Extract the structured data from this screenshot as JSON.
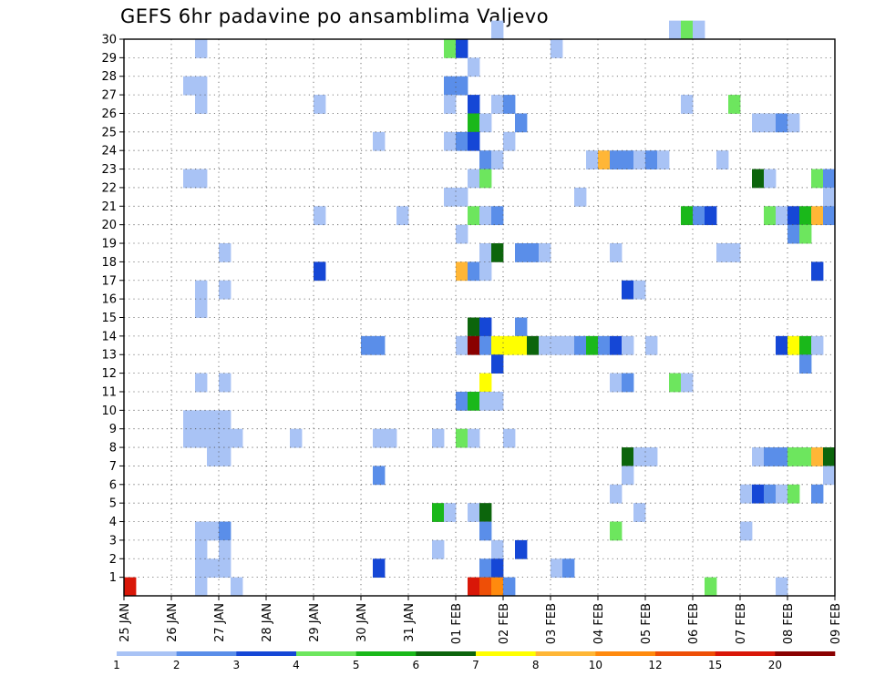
{
  "chart_data": {
    "type": "heatmap",
    "title": "GEFS 6hr padavine po ansamblima Valjevo",
    "xlabel": "",
    "ylabel": "",
    "x_ticks": [
      "25 JAN",
      "26 JAN",
      "27 JAN",
      "28 JAN",
      "29 JAN",
      "30 JAN",
      "31 JAN",
      "01 FEB",
      "02 FEB",
      "03 FEB",
      "04 FEB",
      "05 FEB",
      "06 FEB",
      "07 FEB",
      "08 FEB",
      "09 FEB"
    ],
    "y_ticks": [
      1,
      2,
      3,
      4,
      5,
      6,
      7,
      8,
      9,
      10,
      11,
      12,
      13,
      14,
      15,
      16,
      17,
      18,
      19,
      20,
      21,
      22,
      23,
      24,
      25,
      26,
      27,
      28,
      29,
      30
    ],
    "xlim": [
      "25 JAN 00Z",
      "09 FEB 00Z"
    ],
    "ylim": [
      0,
      30
    ],
    "time_step_hours": 6,
    "grid": true,
    "colorbar": {
      "position": "bottom",
      "labels": [
        "1",
        "2",
        "3",
        "4",
        "5",
        "6",
        "7",
        "8",
        "10",
        "12",
        "15",
        "20"
      ],
      "colors": [
        "#a9c3f5",
        "#5a8ee9",
        "#1547d6",
        "#6de65e",
        "#1ab81a",
        "#0c650c",
        "#ffff00",
        "#ffb636",
        "#ff8a0e",
        "#ee4f07",
        "#d91708",
        "#8a0000"
      ]
    },
    "cells": [
      {
        "x": "25 JAN 00Z",
        "m": 0,
        "v": 15
      },
      {
        "x": "26 JAN 06Z",
        "m": 27,
        "v": 1
      },
      {
        "x": "26 JAN 06Z",
        "m": 22,
        "v": 1
      },
      {
        "x": "26 JAN 06Z",
        "m": 9,
        "v": 1
      },
      {
        "x": "26 JAN 06Z",
        "m": 8,
        "v": 1
      },
      {
        "x": "26 JAN 12Z",
        "m": 29,
        "v": 1
      },
      {
        "x": "26 JAN 12Z",
        "m": 27,
        "v": 1
      },
      {
        "x": "26 JAN 12Z",
        "m": 26,
        "v": 1
      },
      {
        "x": "26 JAN 12Z",
        "m": 22,
        "v": 1
      },
      {
        "x": "26 JAN 12Z",
        "m": 16,
        "v": 1
      },
      {
        "x": "26 JAN 12Z",
        "m": 15,
        "v": 1
      },
      {
        "x": "26 JAN 12Z",
        "m": 11,
        "v": 1
      },
      {
        "x": "26 JAN 12Z",
        "m": 9,
        "v": 1
      },
      {
        "x": "26 JAN 12Z",
        "m": 8,
        "v": 1
      },
      {
        "x": "26 JAN 12Z",
        "m": 3,
        "v": 1
      },
      {
        "x": "26 JAN 12Z",
        "m": 2,
        "v": 1
      },
      {
        "x": "26 JAN 12Z",
        "m": 1,
        "v": 1
      },
      {
        "x": "26 JAN 12Z",
        "m": 0,
        "v": 1
      },
      {
        "x": "26 JAN 18Z",
        "m": 9,
        "v": 1
      },
      {
        "x": "26 JAN 18Z",
        "m": 8,
        "v": 1
      },
      {
        "x": "26 JAN 18Z",
        "m": 7,
        "v": 1
      },
      {
        "x": "26 JAN 18Z",
        "m": 3,
        "v": 1
      },
      {
        "x": "26 JAN 18Z",
        "m": 1,
        "v": 1
      },
      {
        "x": "27 JAN 00Z",
        "m": 18,
        "v": 1
      },
      {
        "x": "27 JAN 00Z",
        "m": 16,
        "v": 1
      },
      {
        "x": "27 JAN 00Z",
        "m": 11,
        "v": 1
      },
      {
        "x": "27 JAN 00Z",
        "m": 9,
        "v": 1
      },
      {
        "x": "27 JAN 00Z",
        "m": 8,
        "v": 1
      },
      {
        "x": "27 JAN 00Z",
        "m": 7,
        "v": 1
      },
      {
        "x": "27 JAN 00Z",
        "m": 3,
        "v": 2
      },
      {
        "x": "27 JAN 00Z",
        "m": 2,
        "v": 1
      },
      {
        "x": "27 JAN 00Z",
        "m": 1,
        "v": 1
      },
      {
        "x": "27 JAN 06Z",
        "m": 8,
        "v": 1
      },
      {
        "x": "27 JAN 06Z",
        "m": 0,
        "v": 1
      },
      {
        "x": "28 JAN 12Z",
        "m": 8,
        "v": 1
      },
      {
        "x": "29 JAN 00Z",
        "m": 26,
        "v": 1
      },
      {
        "x": "29 JAN 00Z",
        "m": 20,
        "v": 1
      },
      {
        "x": "29 JAN 00Z",
        "m": 17,
        "v": 3
      },
      {
        "x": "30 JAN 00Z",
        "m": 13,
        "v": 2
      },
      {
        "x": "30 JAN 06Z",
        "m": 24,
        "v": 1
      },
      {
        "x": "30 JAN 06Z",
        "m": 13,
        "v": 2
      },
      {
        "x": "30 JAN 06Z",
        "m": 8,
        "v": 1
      },
      {
        "x": "30 JAN 06Z",
        "m": 6,
        "v": 2
      },
      {
        "x": "30 JAN 06Z",
        "m": 1,
        "v": 3
      },
      {
        "x": "30 JAN 12Z",
        "m": 8,
        "v": 1
      },
      {
        "x": "30 JAN 18Z",
        "m": 20,
        "v": 1
      },
      {
        "x": "31 JAN 12Z",
        "m": 8,
        "v": 1
      },
      {
        "x": "31 JAN 12Z",
        "m": 4,
        "v": 5
      },
      {
        "x": "31 JAN 12Z",
        "m": 2,
        "v": 1
      },
      {
        "x": "31 JAN 18Z",
        "m": 29,
        "v": 4
      },
      {
        "x": "31 JAN 18Z",
        "m": 27,
        "v": 2
      },
      {
        "x": "31 JAN 18Z",
        "m": 26,
        "v": 1
      },
      {
        "x": "31 JAN 18Z",
        "m": 24,
        "v": 1
      },
      {
        "x": "31 JAN 18Z",
        "m": 21,
        "v": 1
      },
      {
        "x": "31 JAN 18Z",
        "m": 4,
        "v": 1
      },
      {
        "x": "01 FEB 00Z",
        "m": 29,
        "v": 3
      },
      {
        "x": "01 FEB 00Z",
        "m": 27,
        "v": 2
      },
      {
        "x": "01 FEB 00Z",
        "m": 24,
        "v": 2
      },
      {
        "x": "01 FEB 00Z",
        "m": 21,
        "v": 1
      },
      {
        "x": "01 FEB 00Z",
        "m": 19,
        "v": 1
      },
      {
        "x": "01 FEB 00Z",
        "m": 17,
        "v": 8
      },
      {
        "x": "01 FEB 00Z",
        "m": 13,
        "v": 1
      },
      {
        "x": "01 FEB 00Z",
        "m": 10,
        "v": 2
      },
      {
        "x": "01 FEB 00Z",
        "m": 8,
        "v": 4
      },
      {
        "x": "01 FEB 06Z",
        "m": 28,
        "v": 1
      },
      {
        "x": "01 FEB 06Z",
        "m": 26,
        "v": 3
      },
      {
        "x": "01 FEB 06Z",
        "m": 25,
        "v": 5
      },
      {
        "x": "01 FEB 06Z",
        "m": 24,
        "v": 3
      },
      {
        "x": "01 FEB 06Z",
        "m": 22,
        "v": 1
      },
      {
        "x": "01 FEB 06Z",
        "m": 20,
        "v": 4
      },
      {
        "x": "01 FEB 06Z",
        "m": 17,
        "v": 2
      },
      {
        "x": "01 FEB 06Z",
        "m": 14,
        "v": 6
      },
      {
        "x": "01 FEB 06Z",
        "m": 13,
        "v": 20
      },
      {
        "x": "01 FEB 06Z",
        "m": 10,
        "v": 5
      },
      {
        "x": "01 FEB 06Z",
        "m": 8,
        "v": 1
      },
      {
        "x": "01 FEB 06Z",
        "m": 4,
        "v": 1
      },
      {
        "x": "01 FEB 06Z",
        "m": 0,
        "v": 15
      },
      {
        "x": "01 FEB 12Z",
        "m": 25,
        "v": 1
      },
      {
        "x": "01 FEB 12Z",
        "m": 23,
        "v": 2
      },
      {
        "x": "01 FEB 12Z",
        "m": 22,
        "v": 4
      },
      {
        "x": "01 FEB 12Z",
        "m": 20,
        "v": 1
      },
      {
        "x": "01 FEB 12Z",
        "m": 18,
        "v": 1
      },
      {
        "x": "01 FEB 12Z",
        "m": 17,
        "v": 1
      },
      {
        "x": "01 FEB 12Z",
        "m": 14,
        "v": 3
      },
      {
        "x": "01 FEB 12Z",
        "m": 13,
        "v": 2
      },
      {
        "x": "01 FEB 12Z",
        "m": 11,
        "v": 7
      },
      {
        "x": "01 FEB 12Z",
        "m": 10,
        "v": 1
      },
      {
        "x": "01 FEB 12Z",
        "m": 4,
        "v": 6
      },
      {
        "x": "01 FEB 12Z",
        "m": 3,
        "v": 2
      },
      {
        "x": "01 FEB 12Z",
        "m": 1,
        "v": 2
      },
      {
        "x": "01 FEB 12Z",
        "m": 0,
        "v": 12
      },
      {
        "x": "01 FEB 18Z",
        "m": 30,
        "v": 1
      },
      {
        "x": "01 FEB 18Z",
        "m": 26,
        "v": 1
      },
      {
        "x": "01 FEB 18Z",
        "m": 23,
        "v": 1
      },
      {
        "x": "01 FEB 18Z",
        "m": 20,
        "v": 2
      },
      {
        "x": "01 FEB 18Z",
        "m": 18,
        "v": 6
      },
      {
        "x": "01 FEB 18Z",
        "m": 13,
        "v": 7
      },
      {
        "x": "01 FEB 18Z",
        "m": 12,
        "v": 3
      },
      {
        "x": "01 FEB 18Z",
        "m": 10,
        "v": 1
      },
      {
        "x": "01 FEB 18Z",
        "m": 2,
        "v": 1
      },
      {
        "x": "01 FEB 18Z",
        "m": 1,
        "v": 3
      },
      {
        "x": "01 FEB 18Z",
        "m": 0,
        "v": 10
      },
      {
        "x": "02 FEB 00Z",
        "m": 26,
        "v": 2
      },
      {
        "x": "02 FEB 00Z",
        "m": 24,
        "v": 1
      },
      {
        "x": "02 FEB 00Z",
        "m": 13,
        "v": 7
      },
      {
        "x": "02 FEB 00Z",
        "m": 8,
        "v": 1
      },
      {
        "x": "02 FEB 00Z",
        "m": 0,
        "v": 2
      },
      {
        "x": "02 FEB 06Z",
        "m": 25,
        "v": 2
      },
      {
        "x": "02 FEB 06Z",
        "m": 18,
        "v": 2
      },
      {
        "x": "02 FEB 06Z",
        "m": 14,
        "v": 2
      },
      {
        "x": "02 FEB 06Z",
        "m": 13,
        "v": 7
      },
      {
        "x": "02 FEB 06Z",
        "m": 2,
        "v": 3
      },
      {
        "x": "02 FEB 12Z",
        "m": 18,
        "v": 2
      },
      {
        "x": "02 FEB 12Z",
        "m": 13,
        "v": 6
      },
      {
        "x": "02 FEB 18Z",
        "m": 18,
        "v": 1
      },
      {
        "x": "02 FEB 18Z",
        "m": 13,
        "v": 1
      },
      {
        "x": "03 FEB 00Z",
        "m": 29,
        "v": 1
      },
      {
        "x": "03 FEB 00Z",
        "m": 13,
        "v": 1
      },
      {
        "x": "03 FEB 00Z",
        "m": 1,
        "v": 1
      },
      {
        "x": "03 FEB 06Z",
        "m": 13,
        "v": 1
      },
      {
        "x": "03 FEB 06Z",
        "m": 1,
        "v": 2
      },
      {
        "x": "03 FEB 12Z",
        "m": 21,
        "v": 1
      },
      {
        "x": "03 FEB 12Z",
        "m": 13,
        "v": 2
      },
      {
        "x": "03 FEB 18Z",
        "m": 23,
        "v": 1
      },
      {
        "x": "03 FEB 18Z",
        "m": 13,
        "v": 5
      },
      {
        "x": "04 FEB 00Z",
        "m": 23,
        "v": 8
      },
      {
        "x": "04 FEB 00Z",
        "m": 13,
        "v": 2
      },
      {
        "x": "04 FEB 06Z",
        "m": 23,
        "v": 2
      },
      {
        "x": "04 FEB 06Z",
        "m": 18,
        "v": 1
      },
      {
        "x": "04 FEB 06Z",
        "m": 13,
        "v": 3
      },
      {
        "x": "04 FEB 06Z",
        "m": 11,
        "v": 1
      },
      {
        "x": "04 FEB 06Z",
        "m": 5,
        "v": 1
      },
      {
        "x": "04 FEB 06Z",
        "m": 3,
        "v": 4
      },
      {
        "x": "04 FEB 12Z",
        "m": 23,
        "v": 2
      },
      {
        "x": "04 FEB 12Z",
        "m": 16,
        "v": 3
      },
      {
        "x": "04 FEB 12Z",
        "m": 13,
        "v": 1
      },
      {
        "x": "04 FEB 12Z",
        "m": 11,
        "v": 2
      },
      {
        "x": "04 FEB 12Z",
        "m": 7,
        "v": 6
      },
      {
        "x": "04 FEB 12Z",
        "m": 6,
        "v": 1
      },
      {
        "x": "04 FEB 18Z",
        "m": 23,
        "v": 1
      },
      {
        "x": "04 FEB 18Z",
        "m": 16,
        "v": 1
      },
      {
        "x": "04 FEB 18Z",
        "m": 7,
        "v": 1
      },
      {
        "x": "04 FEB 18Z",
        "m": 4,
        "v": 1
      },
      {
        "x": "05 FEB 00Z",
        "m": 23,
        "v": 2
      },
      {
        "x": "05 FEB 00Z",
        "m": 13,
        "v": 1
      },
      {
        "x": "05 FEB 00Z",
        "m": 7,
        "v": 1
      },
      {
        "x": "05 FEB 06Z",
        "m": 23,
        "v": 1
      },
      {
        "x": "05 FEB 12Z",
        "m": 30,
        "v": 1
      },
      {
        "x": "05 FEB 12Z",
        "m": 11,
        "v": 4
      },
      {
        "x": "05 FEB 18Z",
        "m": 30,
        "v": 4
      },
      {
        "x": "05 FEB 18Z",
        "m": 26,
        "v": 1
      },
      {
        "x": "05 FEB 18Z",
        "m": 20,
        "v": 5
      },
      {
        "x": "05 FEB 18Z",
        "m": 11,
        "v": 1
      },
      {
        "x": "06 FEB 00Z",
        "m": 30,
        "v": 1
      },
      {
        "x": "06 FEB 00Z",
        "m": 20,
        "v": 2
      },
      {
        "x": "06 FEB 06Z",
        "m": 20,
        "v": 3
      },
      {
        "x": "06 FEB 06Z",
        "m": 0,
        "v": 4
      },
      {
        "x": "06 FEB 12Z",
        "m": 23,
        "v": 1
      },
      {
        "x": "06 FEB 12Z",
        "m": 18,
        "v": 1
      },
      {
        "x": "06 FEB 18Z",
        "m": 26,
        "v": 4
      },
      {
        "x": "06 FEB 18Z",
        "m": 18,
        "v": 1
      },
      {
        "x": "07 FEB 00Z",
        "m": 5,
        "v": 1
      },
      {
        "x": "07 FEB 00Z",
        "m": 3,
        "v": 1
      },
      {
        "x": "07 FEB 06Z",
        "m": 25,
        "v": 1
      },
      {
        "x": "07 FEB 06Z",
        "m": 22,
        "v": 6
      },
      {
        "x": "07 FEB 06Z",
        "m": 7,
        "v": 1
      },
      {
        "x": "07 FEB 06Z",
        "m": 5,
        "v": 3
      },
      {
        "x": "07 FEB 12Z",
        "m": 25,
        "v": 1
      },
      {
        "x": "07 FEB 12Z",
        "m": 22,
        "v": 1
      },
      {
        "x": "07 FEB 12Z",
        "m": 20,
        "v": 4
      },
      {
        "x": "07 FEB 12Z",
        "m": 7,
        "v": 2
      },
      {
        "x": "07 FEB 12Z",
        "m": 5,
        "v": 2
      },
      {
        "x": "07 FEB 18Z",
        "m": 25,
        "v": 2
      },
      {
        "x": "07 FEB 18Z",
        "m": 20,
        "v": 1
      },
      {
        "x": "07 FEB 18Z",
        "m": 13,
        "v": 3
      },
      {
        "x": "07 FEB 18Z",
        "m": 7,
        "v": 2
      },
      {
        "x": "07 FEB 18Z",
        "m": 5,
        "v": 1
      },
      {
        "x": "07 FEB 18Z",
        "m": 0,
        "v": 1
      },
      {
        "x": "08 FEB 00Z",
        "m": 25,
        "v": 1
      },
      {
        "x": "08 FEB 00Z",
        "m": 20,
        "v": 3
      },
      {
        "x": "08 FEB 00Z",
        "m": 19,
        "v": 2
      },
      {
        "x": "08 FEB 00Z",
        "m": 13,
        "v": 7
      },
      {
        "x": "08 FEB 00Z",
        "m": 7,
        "v": 4
      },
      {
        "x": "08 FEB 00Z",
        "m": 5,
        "v": 4
      },
      {
        "x": "08 FEB 06Z",
        "m": 20,
        "v": 5
      },
      {
        "x": "08 FEB 06Z",
        "m": 19,
        "v": 4
      },
      {
        "x": "08 FEB 06Z",
        "m": 13,
        "v": 5
      },
      {
        "x": "08 FEB 06Z",
        "m": 12,
        "v": 2
      },
      {
        "x": "08 FEB 06Z",
        "m": 7,
        "v": 4
      },
      {
        "x": "08 FEB 12Z",
        "m": 22,
        "v": 4
      },
      {
        "x": "08 FEB 12Z",
        "m": 20,
        "v": 8
      },
      {
        "x": "08 FEB 12Z",
        "m": 17,
        "v": 3
      },
      {
        "x": "08 FEB 12Z",
        "m": 13,
        "v": 1
      },
      {
        "x": "08 FEB 12Z",
        "m": 7,
        "v": 8
      },
      {
        "x": "08 FEB 12Z",
        "m": 5,
        "v": 2
      },
      {
        "x": "08 FEB 18Z",
        "m": 22,
        "v": 2
      },
      {
        "x": "08 FEB 18Z",
        "m": 21,
        "v": 1
      },
      {
        "x": "08 FEB 18Z",
        "m": 20,
        "v": 2
      },
      {
        "x": "08 FEB 18Z",
        "m": 7,
        "v": 6
      },
      {
        "x": "08 FEB 18Z",
        "m": 6,
        "v": 1
      }
    ]
  }
}
